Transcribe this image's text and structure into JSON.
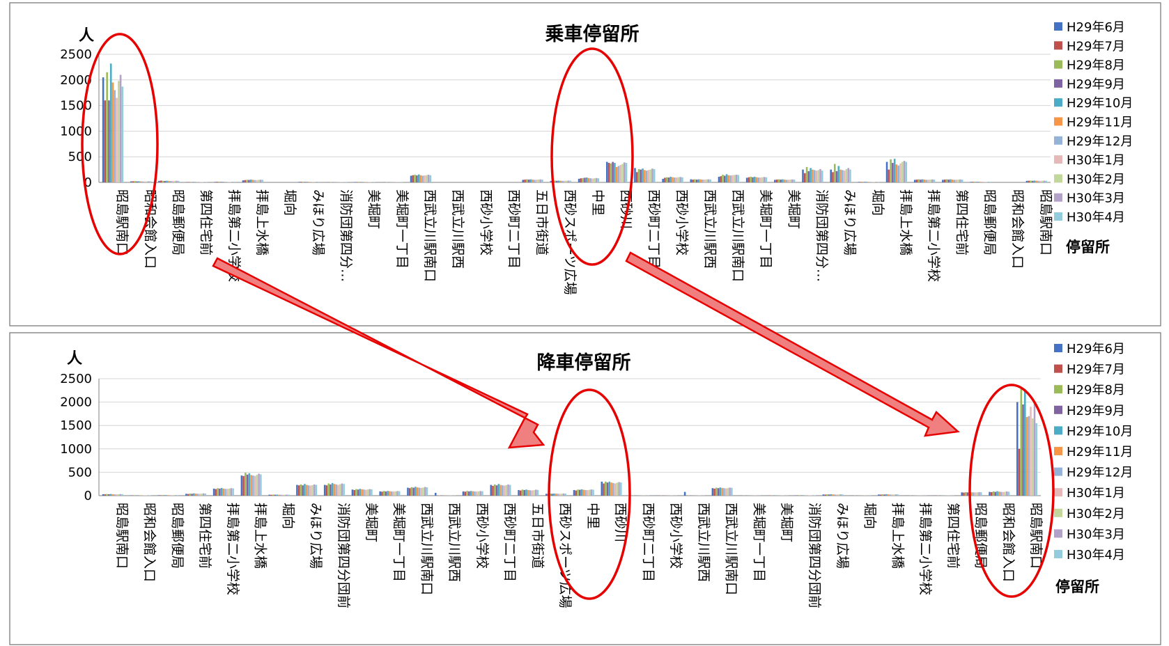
{
  "chart_data": [
    {
      "type": "bar",
      "title": "乗車停留所",
      "ylabel": "人",
      "xlabel": "停留所",
      "ylim": [
        0,
        2500
      ],
      "yticks": [
        0,
        500,
        1000,
        1500,
        2000,
        2500
      ],
      "grid": true,
      "legend": "right",
      "categories": [
        "昭島駅南口",
        "昭和会館入口",
        "昭島郵便局",
        "第四住宅前",
        "拝島第二小学校",
        "拝島上水橋",
        "堀向",
        "みほり広場",
        "消防団第四分…",
        "美堀町",
        "美堀町一丁目",
        "西武立川駅南口",
        "西武立川駅西",
        "西砂小学校",
        "西砂町二丁目",
        "五日市街道",
        "西砂スポーツ広場",
        "中里",
        "西砂川",
        "西砂町二丁目",
        "西砂小学校",
        "西武立川駅西",
        "西武立川駅南口",
        "美堀町一丁目",
        "美堀町",
        "消防団第四分…",
        "みほり広場",
        "堀向",
        "拝島上水橋",
        "拝島第二小学校",
        "第四住宅前",
        "昭島郵便局",
        "昭和会館入口",
        "昭島駅南口"
      ],
      "series": [
        {
          "name": "H29年6月",
          "values": [
            2050,
            20,
            30,
            8,
            10,
            40,
            0,
            10,
            5,
            8,
            5,
            130,
            0,
            0,
            0,
            50,
            30,
            70,
            400,
            280,
            70,
            60,
            110,
            90,
            50,
            250,
            250,
            10,
            400,
            50,
            50,
            10,
            0,
            30
          ]
        },
        {
          "name": "H29年7月",
          "values": [
            1600,
            22,
            35,
            8,
            12,
            45,
            0,
            12,
            5,
            8,
            5,
            140,
            0,
            0,
            0,
            55,
            32,
            80,
            380,
            200,
            90,
            55,
            120,
            100,
            55,
            180,
            200,
            10,
            250,
            55,
            55,
            12,
            0,
            32
          ]
        },
        {
          "name": "H29年8月",
          "values": [
            2150,
            25,
            30,
            9,
            12,
            50,
            0,
            12,
            6,
            9,
            6,
            150,
            0,
            0,
            0,
            60,
            35,
            85,
            370,
            260,
            100,
            60,
            150,
            110,
            60,
            300,
            360,
            12,
            450,
            60,
            60,
            12,
            0,
            35
          ]
        },
        {
          "name": "H29年9月",
          "values": [
            1600,
            20,
            28,
            8,
            10,
            48,
            0,
            10,
            5,
            8,
            5,
            135,
            0,
            0,
            0,
            55,
            30,
            90,
            400,
            250,
            95,
            55,
            130,
            100,
            55,
            220,
            220,
            10,
            380,
            55,
            55,
            10,
            0,
            30
          ]
        },
        {
          "name": "H29年10月",
          "values": [
            2320,
            22,
            32,
            9,
            12,
            55,
            0,
            12,
            6,
            9,
            6,
            155,
            0,
            0,
            0,
            60,
            35,
            95,
            380,
            270,
            110,
            60,
            160,
            110,
            60,
            280,
            320,
            12,
            460,
            60,
            60,
            12,
            0,
            35
          ]
        },
        {
          "name": "H29年11月",
          "values": [
            1950,
            20,
            30,
            8,
            11,
            50,
            0,
            11,
            5,
            8,
            5,
            140,
            0,
            0,
            0,
            55,
            32,
            85,
            300,
            240,
            100,
            58,
            140,
            100,
            55,
            250,
            250,
            10,
            350,
            55,
            55,
            11,
            0,
            32
          ]
        },
        {
          "name": "H29年12月",
          "values": [
            1800,
            18,
            28,
            8,
            10,
            45,
            0,
            10,
            5,
            8,
            5,
            130,
            0,
            0,
            0,
            50,
            30,
            80,
            320,
            230,
            95,
            55,
            135,
            95,
            50,
            240,
            240,
            10,
            330,
            50,
            50,
            10,
            0,
            30
          ]
        },
        {
          "name": "H30年1月",
          "values": [
            1650,
            18,
            30,
            8,
            10,
            45,
            0,
            10,
            5,
            8,
            5,
            135,
            0,
            0,
            0,
            52,
            30,
            75,
            340,
            240,
            95,
            55,
            140,
            95,
            52,
            230,
            230,
            10,
            370,
            52,
            52,
            10,
            0,
            30
          ]
        },
        {
          "name": "H30年2月",
          "values": [
            1980,
            20,
            30,
            8,
            11,
            48,
            0,
            11,
            5,
            8,
            5,
            140,
            0,
            0,
            0,
            55,
            32,
            80,
            360,
            250,
            100,
            58,
            145,
            100,
            55,
            240,
            260,
            10,
            400,
            55,
            55,
            11,
            0,
            32
          ]
        },
        {
          "name": "H30年3月",
          "values": [
            2100,
            22,
            32,
            9,
            12,
            52,
            0,
            12,
            6,
            9,
            6,
            150,
            0,
            0,
            0,
            58,
            35,
            85,
            390,
            270,
            105,
            60,
            150,
            105,
            58,
            260,
            280,
            12,
            420,
            58,
            58,
            12,
            0,
            34
          ]
        },
        {
          "name": "H30年4月",
          "values": [
            1870,
            20,
            30,
            8,
            11,
            50,
            0,
            11,
            5,
            8,
            5,
            140,
            0,
            0,
            0,
            55,
            33,
            80,
            380,
            260,
            100,
            58,
            145,
            100,
            55,
            230,
            250,
            10,
            400,
            55,
            55,
            11,
            0,
            32
          ]
        }
      ]
    },
    {
      "type": "bar",
      "title": "降車停留所",
      "ylabel": "人",
      "xlabel": "停留所",
      "ylim": [
        0,
        2500
      ],
      "yticks": [
        0,
        500,
        1000,
        1500,
        2000,
        2500
      ],
      "grid": true,
      "legend": "right",
      "categories": [
        "昭島駅南口",
        "昭和会館入口",
        "昭島郵便局",
        "第四住宅前",
        "拝島第二小学校",
        "拝島上水橋",
        "堀向",
        "みほり広場",
        "消防団第四分団前",
        "美堀町",
        "美堀町一丁目",
        "西武立川駅南口",
        "西武立川駅西",
        "西砂小学校",
        "西砂町二丁目",
        "五日市街道",
        "西砂スポーツ広場",
        "中里",
        "西砂川",
        "西砂町二丁目",
        "西砂小学校",
        "西武立川駅西",
        "西武立川駅南口",
        "美堀町一丁目",
        "美堀町",
        "消防団第四分団前",
        "みほり広場",
        "堀向",
        "拝島上水橋",
        "拝島第二小学校",
        "第四住宅前",
        "昭島郵便局",
        "昭和会館入口",
        "昭島駅南口"
      ],
      "series": [
        {
          "name": "H29年6月",
          "values": [
            30,
            8,
            10,
            40,
            150,
            430,
            20,
            230,
            230,
            130,
            90,
            170,
            60,
            90,
            230,
            120,
            40,
            120,
            300,
            5,
            5,
            80,
            160,
            5,
            5,
            8,
            25,
            5,
            25,
            5,
            5,
            70,
            80,
            2000
          ]
        },
        {
          "name": "H29年7月",
          "values": [
            28,
            8,
            10,
            35,
            140,
            420,
            18,
            220,
            220,
            120,
            85,
            160,
            5,
            85,
            210,
            110,
            35,
            110,
            260,
            5,
            5,
            5,
            150,
            5,
            5,
            8,
            22,
            5,
            22,
            5,
            5,
            65,
            75,
            1000
          ]
        },
        {
          "name": "H29年8月",
          "values": [
            35,
            9,
            12,
            45,
            160,
            490,
            22,
            240,
            260,
            140,
            100,
            180,
            5,
            100,
            240,
            130,
            45,
            130,
            300,
            5,
            5,
            5,
            170,
            5,
            5,
            9,
            28,
            5,
            28,
            5,
            5,
            75,
            90,
            2280
          ]
        },
        {
          "name": "H29年9月",
          "values": [
            30,
            8,
            10,
            40,
            150,
            450,
            20,
            220,
            240,
            130,
            90,
            170,
            5,
            90,
            220,
            120,
            40,
            125,
            280,
            5,
            5,
            5,
            160,
            5,
            5,
            8,
            25,
            5,
            25,
            5,
            5,
            70,
            80,
            1950
          ]
        },
        {
          "name": "H29年10月",
          "values": [
            35,
            9,
            12,
            50,
            165,
            480,
            22,
            250,
            270,
            145,
            100,
            190,
            5,
            100,
            250,
            130,
            45,
            135,
            300,
            5,
            5,
            5,
            175,
            5,
            5,
            9,
            30,
            5,
            30,
            5,
            5,
            78,
            95,
            2280
          ]
        },
        {
          "name": "H29年11月",
          "values": [
            30,
            8,
            11,
            42,
            150,
            440,
            20,
            230,
            250,
            135,
            95,
            175,
            5,
            95,
            230,
            120,
            42,
            125,
            280,
            5,
            5,
            5,
            165,
            5,
            5,
            8,
            26,
            5,
            26,
            5,
            5,
            72,
            85,
            1680
          ]
        },
        {
          "name": "H29年12月",
          "values": [
            28,
            8,
            10,
            40,
            145,
            430,
            19,
            220,
            240,
            130,
            90,
            170,
            5,
            90,
            220,
            115,
            40,
            120,
            270,
            5,
            5,
            5,
            160,
            5,
            5,
            8,
            25,
            5,
            25,
            5,
            5,
            70,
            80,
            1700
          ]
        },
        {
          "name": "H30年1月",
          "values": [
            28,
            8,
            10,
            40,
            145,
            420,
            19,
            215,
            230,
            125,
            88,
            165,
            5,
            88,
            215,
            112,
            40,
            118,
            260,
            5,
            5,
            5,
            155,
            5,
            5,
            8,
            24,
            5,
            24,
            5,
            5,
            68,
            78,
            1900
          ]
        },
        {
          "name": "H30年2月",
          "values": [
            30,
            8,
            11,
            42,
            150,
            445,
            20,
            225,
            245,
            132,
            92,
            172,
            5,
            92,
            225,
            118,
            42,
            124,
            275,
            5,
            5,
            5,
            162,
            5,
            5,
            8,
            25,
            5,
            25,
            5,
            5,
            70,
            82,
            1650
          ]
        },
        {
          "name": "H30年3月",
          "values": [
            34,
            9,
            12,
            48,
            160,
            470,
            22,
            240,
            260,
            140,
            98,
            185,
            5,
            98,
            240,
            128,
            45,
            132,
            290,
            5,
            5,
            5,
            172,
            5,
            5,
            9,
            28,
            5,
            28,
            5,
            5,
            76,
            90,
            2000
          ]
        },
        {
          "name": "H30年4月",
          "values": [
            32,
            8,
            11,
            45,
            155,
            455,
            21,
            230,
            250,
            135,
            95,
            178,
            5,
            95,
            230,
            122,
            43,
            128,
            280,
            5,
            5,
            5,
            168,
            5,
            5,
            8,
            26,
            5,
            26,
            5,
            5,
            73,
            85,
            1550
          ]
        }
      ]
    }
  ],
  "colors": {
    "series": [
      "#4472C4",
      "#C0504D",
      "#9BBB59",
      "#8064A2",
      "#4BACC6",
      "#F79646",
      "#95B3D7",
      "#E6B9B8",
      "#C3D69B",
      "#B3A2C7",
      "#93CDDD"
    ],
    "annotation": "#e60000",
    "arrow_fill": "#f08080"
  }
}
